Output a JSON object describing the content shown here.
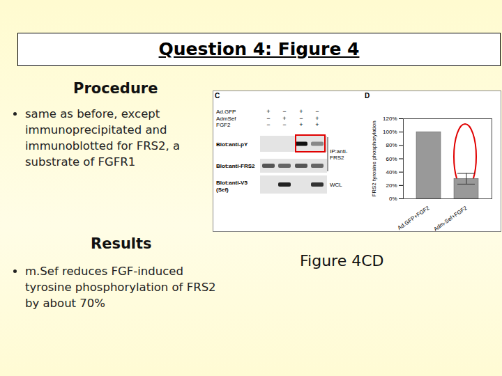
{
  "slide": {
    "title": "Question 4: Figure 4",
    "procedure": {
      "heading": "Procedure",
      "bullet": [
        "same as before, except",
        "immunoprecipitated and",
        "immunoblotted for FRS2, a",
        "substrate of FGFR1"
      ]
    },
    "results": {
      "heading": "Results",
      "bullet": [
        "m.Sef reduces FGF-induced",
        "tyrosine phosphorylation of FRS2",
        "by about 70%"
      ]
    },
    "caption": "Figure 4CD"
  },
  "panel_c": {
    "label": "C",
    "conditions": [
      {
        "name": "Ad.GFP",
        "signs": [
          "+",
          "−",
          "+",
          "−"
        ]
      },
      {
        "name": "AdmSef",
        "signs": [
          "−",
          "+",
          "−",
          "+"
        ]
      },
      {
        "name": "FGF2",
        "signs": [
          "−",
          "−",
          "+",
          "+"
        ]
      }
    ],
    "blots": [
      {
        "label": [
          "Blot:anti-pY"
        ]
      },
      {
        "label": [
          "Blot:anti-FRS2"
        ]
      },
      {
        "label": [
          "Blot:anti-V5",
          "(Sef)"
        ]
      }
    ],
    "groups": [
      {
        "label": [
          "IP:anti-",
          "FRS2"
        ]
      },
      {
        "label": [
          "WCL"
        ]
      }
    ]
  },
  "panel_d_label": "D",
  "chart_data": {
    "type": "bar",
    "y_label": "FRS2 tyrosine phosphorylation",
    "categories": [
      "Ad.GFP+FGF2",
      "Adm-Sef+FGF2"
    ],
    "values": [
      100,
      30
    ],
    "errors": [
      null,
      8
    ],
    "color": "#999999",
    "ylim": [
      0,
      120
    ],
    "yticks": [
      {
        "value": 0,
        "label": "0%"
      },
      {
        "value": 20,
        "label": "20%"
      },
      {
        "value": 40,
        "label": "40%"
      },
      {
        "value": 60,
        "label": "60%"
      },
      {
        "value": 80,
        "label": "80%"
      },
      {
        "value": 100,
        "label": "100%"
      },
      {
        "value": 120,
        "label": "120%"
      }
    ]
  }
}
